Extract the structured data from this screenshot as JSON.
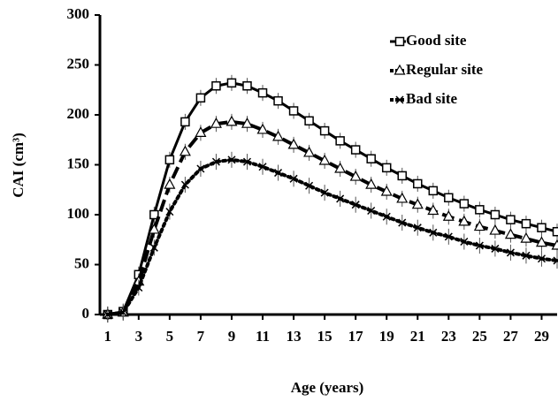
{
  "chart_data": {
    "type": "line",
    "xlabel": "Age (years)",
    "ylabel": "CAI (cm³)",
    "x": [
      1,
      2,
      3,
      4,
      5,
      6,
      7,
      8,
      9,
      10,
      11,
      12,
      13,
      14,
      15,
      16,
      17,
      18,
      19,
      20,
      21,
      22,
      23,
      24,
      25,
      26,
      27,
      28,
      29,
      30
    ],
    "xlim": [
      0.5,
      30
    ],
    "xticks": [
      1,
      3,
      5,
      7,
      9,
      11,
      13,
      15,
      17,
      19,
      21,
      23,
      25,
      27,
      29
    ],
    "ylim": [
      0,
      300
    ],
    "yticks": [
      0,
      50,
      100,
      150,
      200,
      250,
      300
    ],
    "legend": "top-right",
    "series": [
      {
        "name": "Good site",
        "color": "#000000",
        "dash": "solid",
        "marker": "square",
        "values": [
          0,
          3,
          40,
          100,
          155,
          193,
          217,
          229,
          232,
          229,
          222,
          214,
          204,
          194,
          184,
          174,
          165,
          156,
          147,
          139,
          131,
          124,
          117,
          111,
          105,
          100,
          95,
          91,
          87,
          83
        ],
        "errors": [
          8,
          8,
          8,
          8,
          8,
          8,
          8,
          8,
          8,
          8,
          8,
          8,
          8,
          8,
          8,
          8,
          8,
          8,
          8,
          8,
          8,
          8,
          8,
          8,
          8,
          8,
          8,
          8,
          8,
          8
        ]
      },
      {
        "name": "Regular site",
        "color": "#000000",
        "dash": "dashed",
        "marker": "triangle",
        "values": [
          0,
          2,
          33,
          85,
          130,
          163,
          182,
          191,
          193,
          191,
          185,
          178,
          170,
          162,
          154,
          146,
          138,
          130,
          123,
          116,
          110,
          104,
          98,
          93,
          88,
          84,
          80,
          76,
          72,
          69
        ],
        "errors": [
          8,
          8,
          8,
          8,
          8,
          8,
          8,
          8,
          8,
          8,
          8,
          8,
          8,
          8,
          8,
          8,
          8,
          8,
          8,
          8,
          8,
          8,
          8,
          8,
          8,
          8,
          8,
          8,
          8,
          8
        ]
      },
      {
        "name": "Bad site",
        "color": "#000000",
        "dash": "dotted",
        "marker": "x",
        "values": [
          0,
          2,
          27,
          67,
          103,
          130,
          146,
          153,
          155,
          153,
          148,
          142,
          136,
          129,
          122,
          116,
          110,
          104,
          98,
          92,
          87,
          82,
          78,
          73,
          69,
          66,
          62,
          59,
          56,
          54
        ],
        "errors": [
          8,
          8,
          8,
          8,
          8,
          8,
          8,
          8,
          8,
          8,
          8,
          8,
          8,
          8,
          8,
          8,
          8,
          8,
          8,
          8,
          8,
          8,
          8,
          8,
          8,
          8,
          8,
          8,
          8,
          8
        ]
      }
    ]
  }
}
